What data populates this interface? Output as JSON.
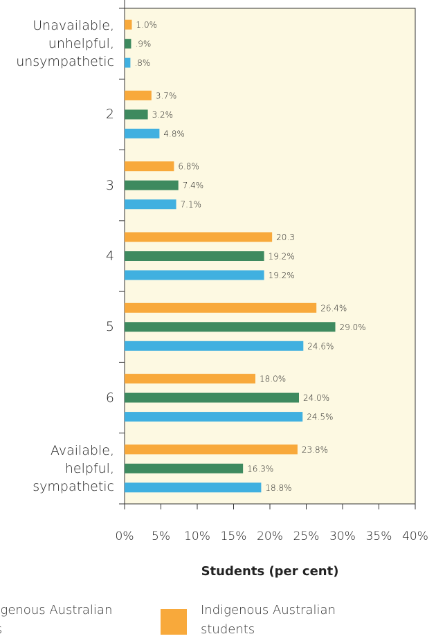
{
  "chart_data": {
    "type": "barh",
    "categories": [
      "Unavailable,\nunhelpful,\nunsympathetic",
      "2",
      "3",
      "4",
      "5",
      "6",
      "Available,\nhelpful,\nsympathetic"
    ],
    "series": [
      {
        "name": "Indigenous Australian students",
        "color": "#f8a93b",
        "values": [
          1.0,
          3.7,
          6.8,
          20.3,
          26.4,
          18.0,
          23.8
        ],
        "value_labels": [
          "1.0%",
          "3.7%",
          "6.8%",
          "20.3",
          "26.4%",
          "18.0%",
          "23.8%"
        ]
      },
      {
        "color": "#3e8a5f",
        "values": [
          0.9,
          3.2,
          7.4,
          19.2,
          29.0,
          24.0,
          16.3
        ],
        "value_labels": [
          ".9%",
          "3.2%",
          "7.4%",
          "19.2%",
          "29.0%",
          "24.0%",
          "16.3%"
        ]
      },
      {
        "name": "Non-Indigenous Australian students",
        "color": "#40b0e0",
        "values": [
          0.8,
          4.8,
          7.1,
          19.2,
          24.6,
          24.5,
          18.8
        ],
        "value_labels": [
          ".8%",
          "4.8%",
          "7.1%",
          "19.2%",
          "24.6%",
          "24.5%",
          "18.8%"
        ]
      }
    ],
    "xlabel": "Students (per cent)",
    "xlim": [
      0,
      40
    ],
    "xticks": [
      {
        "value": 0,
        "label": "0%"
      },
      {
        "value": 5,
        "label": "5%"
      },
      {
        "value": 10,
        "label": "10%"
      },
      {
        "value": 15,
        "label": "15%"
      },
      {
        "value": 20,
        "label": "20%"
      },
      {
        "value": 25,
        "label": "25%"
      },
      {
        "value": 30,
        "label": "30%"
      },
      {
        "value": 35,
        "label": "35%"
      },
      {
        "value": 40,
        "label": "40%"
      }
    ]
  }
}
